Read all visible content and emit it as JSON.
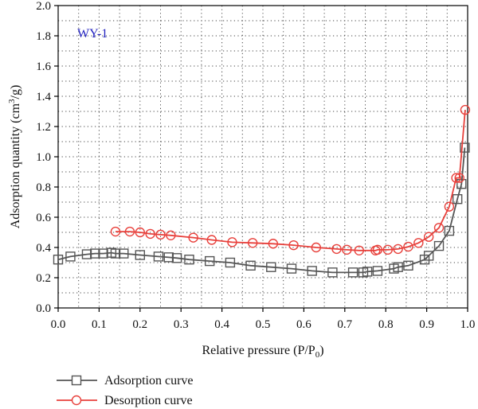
{
  "chart_data": {
    "type": "line",
    "xlabel": "Relative pressure (P/P",
    "xlabel_sub": "0",
    "xlabel_end": ")",
    "ylabel": "Adsorption quantity (cm",
    "ylabel_sup": "3",
    "ylabel_end": "/g)",
    "xlim": [
      0.0,
      1.0
    ],
    "ylim": [
      0.0,
      2.0
    ],
    "x_ticks": [
      "0.0",
      "0.1",
      "0.2",
      "0.3",
      "0.4",
      "0.5",
      "0.6",
      "0.7",
      "0.8",
      "0.9",
      "1.0"
    ],
    "y_ticks": [
      "0.0",
      "0.2",
      "0.4",
      "0.6",
      "0.8",
      "1.0",
      "1.2",
      "1.4",
      "1.6",
      "1.8",
      "2.0"
    ],
    "grid": "dotted",
    "annotation": "WY-1",
    "annotation_color": "#1f1fbf",
    "legend_position": "bottom-left",
    "series": [
      {
        "name": "Adsorption curve",
        "color": "#555555",
        "marker": "square",
        "x": [
          0.0,
          0.03,
          0.07,
          0.09,
          0.11,
          0.13,
          0.14,
          0.16,
          0.2,
          0.245,
          0.27,
          0.29,
          0.32,
          0.37,
          0.42,
          0.47,
          0.52,
          0.57,
          0.62,
          0.67,
          0.72,
          0.745,
          0.755,
          0.78,
          0.82,
          0.83,
          0.855,
          0.895,
          0.905,
          0.93,
          0.955,
          0.975,
          0.985,
          0.993
        ],
        "y": [
          0.32,
          0.34,
          0.355,
          0.36,
          0.36,
          0.365,
          0.36,
          0.36,
          0.35,
          0.34,
          0.335,
          0.33,
          0.32,
          0.31,
          0.3,
          0.28,
          0.27,
          0.26,
          0.245,
          0.235,
          0.235,
          0.235,
          0.24,
          0.245,
          0.26,
          0.27,
          0.28,
          0.32,
          0.345,
          0.41,
          0.51,
          0.72,
          0.82,
          1.06
        ]
      },
      {
        "name": "Desorption curve",
        "color": "#e8413c",
        "marker": "circle",
        "x": [
          0.14,
          0.175,
          0.2,
          0.225,
          0.25,
          0.275,
          0.33,
          0.375,
          0.425,
          0.475,
          0.525,
          0.575,
          0.63,
          0.68,
          0.705,
          0.735,
          0.775,
          0.78,
          0.805,
          0.83,
          0.855,
          0.88,
          0.905,
          0.93,
          0.955,
          0.972,
          0.98,
          0.994
        ],
        "y": [
          0.505,
          0.505,
          0.5,
          0.49,
          0.485,
          0.48,
          0.465,
          0.45,
          0.435,
          0.43,
          0.425,
          0.415,
          0.4,
          0.39,
          0.385,
          0.38,
          0.38,
          0.385,
          0.385,
          0.39,
          0.405,
          0.43,
          0.47,
          0.53,
          0.67,
          0.86,
          0.86,
          1.31
        ]
      }
    ]
  }
}
